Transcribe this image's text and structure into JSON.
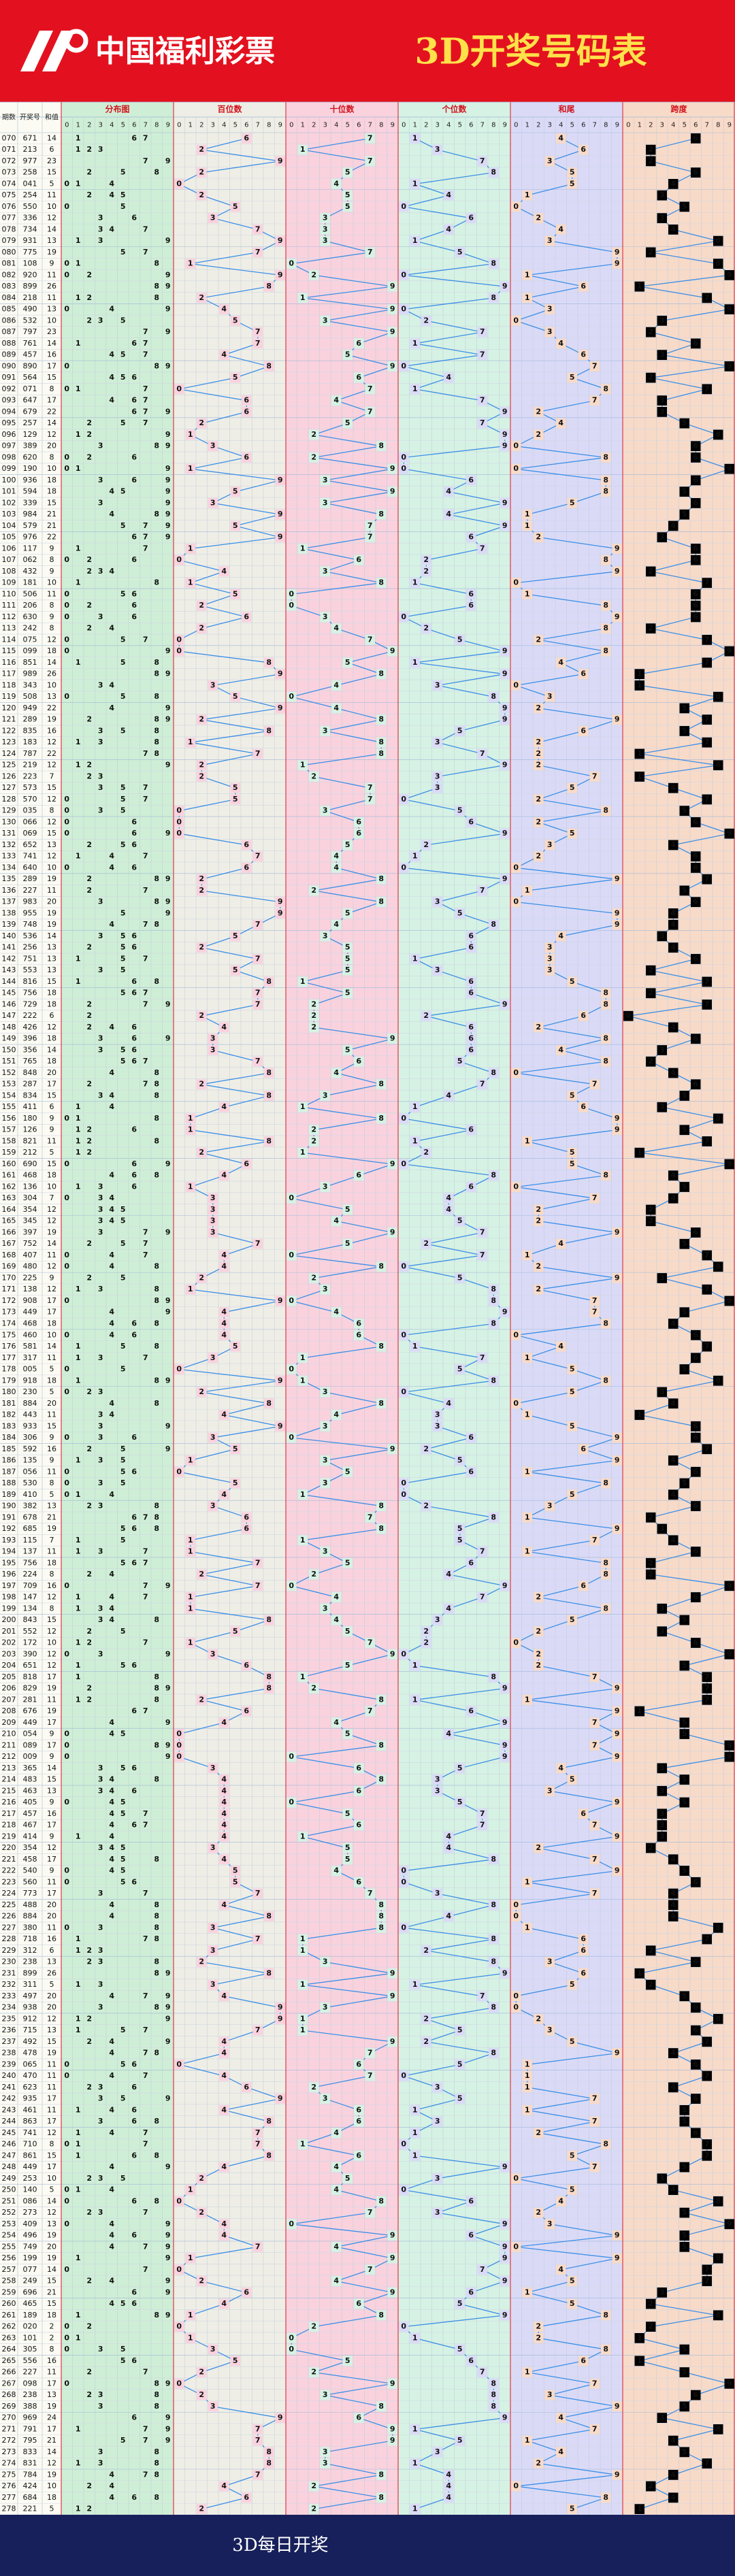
{
  "banner": {
    "logo": "中国福利彩票",
    "title": "3D开奖号码表"
  },
  "header": {
    "columns": [
      "期数",
      "开奖号",
      "和值"
    ],
    "sections": [
      "分布图",
      "百位数",
      "十位数",
      "个位数",
      "和尾",
      "跨度"
    ],
    "digits": [
      0,
      1,
      2,
      3,
      4,
      5,
      6,
      7,
      8,
      9
    ]
  },
  "table": {
    "issues": [
      "070",
      "071",
      "072",
      "073",
      "074",
      "075",
      "076",
      "077",
      "078",
      "079",
      "080",
      "081",
      "082",
      "083",
      "084",
      "085",
      "086",
      "087",
      "088",
      "089",
      "090",
      "091",
      "092",
      "093",
      "094",
      "095",
      "096",
      "097",
      "098",
      "099",
      "100",
      "101",
      "102",
      "103",
      "104",
      "105",
      "106",
      "107",
      "108",
      "109",
      "110",
      "111",
      "112",
      "113",
      "114",
      "115",
      "116",
      "117",
      "118",
      "119",
      "120",
      "121",
      "122",
      "123",
      "124",
      "125",
      "126",
      "127",
      "128",
      "129",
      "130",
      "131",
      "132",
      "133",
      "134",
      "135",
      "136",
      "137",
      "138",
      "139",
      "140",
      "141",
      "142",
      "143",
      "144",
      "145",
      "146",
      "147",
      "148",
      "149",
      "150",
      "151",
      "152",
      "153",
      "154",
      "155",
      "156",
      "157",
      "158",
      "159",
      "160",
      "161",
      "162",
      "163",
      "164",
      "165",
      "166",
      "167",
      "168",
      "169",
      "170",
      "171",
      "172",
      "173",
      "174",
      "175",
      "176",
      "177",
      "178",
      "179",
      "180",
      "181",
      "182",
      "183",
      "184",
      "185",
      "186",
      "187",
      "188",
      "189",
      "190",
      "191",
      "192",
      "193",
      "194",
      "195",
      "196",
      "197",
      "198",
      "199",
      "200",
      "201",
      "202",
      "203",
      "204",
      "205",
      "206",
      "207",
      "208",
      "209",
      "210",
      "211",
      "212",
      "213",
      "214",
      "215",
      "216",
      "217",
      "218",
      "219",
      "220",
      "221",
      "222",
      "223",
      "224",
      "225",
      "226",
      "227",
      "228",
      "229",
      "230",
      "231",
      "232",
      "233",
      "234",
      "235",
      "236",
      "237",
      "238",
      "239",
      "240",
      "241",
      "242",
      "243",
      "244",
      "245",
      "246",
      "247",
      "248",
      "249",
      "250",
      "251",
      "252",
      "253",
      "254",
      "255",
      "256",
      "257",
      "258",
      "259",
      "260",
      "261",
      "262",
      "263",
      "264",
      "265",
      "266",
      "267",
      "268",
      "269",
      "270",
      "271",
      "272",
      "273",
      "274",
      "275",
      "276",
      "277",
      "278"
    ],
    "numbers": [
      "671",
      "213",
      "977",
      "258",
      "041",
      "254",
      "550",
      "336",
      "734",
      "931",
      "775",
      "108",
      "920",
      "899",
      "218",
      "490",
      "532",
      "797",
      "761",
      "457",
      "890",
      "564",
      "071",
      "647",
      "679",
      "257",
      "129",
      "389",
      "620",
      "190",
      "936",
      "594",
      "339",
      "984",
      "579",
      "976",
      "117",
      "062",
      "432",
      "181",
      "506",
      "206",
      "630",
      "242",
      "075",
      "099",
      "851",
      "989",
      "343",
      "508",
      "949",
      "289",
      "835",
      "183",
      "787",
      "219",
      "223",
      "573",
      "570",
      "035",
      "066",
      "069",
      "652",
      "741",
      "640",
      "289",
      "227",
      "983",
      "955",
      "748",
      "536",
      "256",
      "751",
      "553",
      "816",
      "756",
      "729",
      "222",
      "426",
      "396",
      "356",
      "765",
      "848",
      "287",
      "834",
      "411",
      "180",
      "126",
      "821",
      "212",
      "690",
      "468",
      "136",
      "304",
      "354",
      "345",
      "397",
      "752",
      "407",
      "480",
      "225",
      "138",
      "908",
      "449",
      "468",
      "460",
      "581",
      "317",
      "005",
      "918",
      "230",
      "884",
      "443",
      "933",
      "306",
      "592",
      "135",
      "056",
      "530",
      "410",
      "382",
      "678",
      "685",
      "115",
      "137",
      "756",
      "224",
      "709",
      "147",
      "134",
      "843",
      "552",
      "172",
      "390",
      "651",
      "818",
      "829",
      "281",
      "676",
      "449",
      "054",
      "089",
      "009",
      "365",
      "483",
      "463",
      "405",
      "457",
      "467",
      "414",
      "354",
      "458",
      "540",
      "560",
      "773",
      "488",
      "884",
      "380",
      "718",
      "312",
      "238",
      "899",
      "311",
      "497",
      "938",
      "912",
      "715",
      "492",
      "478",
      "065",
      "470",
      "623",
      "935",
      "461",
      "863",
      "741",
      "710",
      "861",
      "449",
      "253",
      "140",
      "086",
      "273",
      "409",
      "496",
      "749",
      "199",
      "077",
      "249",
      "696",
      "465",
      "189",
      "020",
      "101",
      "305",
      "556",
      "227",
      "098",
      "238",
      "388",
      "969",
      "791",
      "795",
      "833",
      "831",
      "784",
      "424",
      "684",
      "221"
    ],
    "sums": [
      14,
      6,
      23,
      15,
      5,
      11,
      10,
      12,
      14,
      13,
      19,
      9,
      11,
      26,
      11,
      13,
      10,
      23,
      14,
      16,
      17,
      15,
      8,
      17,
      22,
      14,
      12,
      20,
      8,
      10,
      18,
      18,
      15,
      21,
      21,
      22,
      9,
      8,
      9,
      10,
      11,
      8,
      9,
      8,
      12,
      18,
      14,
      26,
      10,
      13,
      22,
      19,
      16,
      12,
      22,
      12,
      7,
      15,
      12,
      8,
      12,
      15,
      13,
      12,
      10,
      19,
      11,
      20,
      19,
      19,
      14,
      13,
      13,
      13,
      15,
      18,
      18,
      6,
      12,
      18,
      14,
      18,
      20,
      17,
      15,
      6,
      9,
      9,
      11,
      5,
      15,
      18,
      10,
      7,
      12,
      12,
      19,
      14,
      11,
      12,
      9,
      12,
      17,
      17,
      18,
      10,
      14,
      11,
      5,
      18,
      5,
      20,
      11,
      15,
      9,
      16,
      9,
      11,
      8,
      5,
      13,
      21,
      19,
      7,
      11,
      18,
      8,
      16,
      12,
      8,
      15,
      12,
      10,
      12,
      12,
      17,
      19,
      11,
      19,
      17,
      9,
      17,
      9,
      14,
      15,
      13,
      9,
      16,
      17,
      9,
      12,
      17,
      9,
      11,
      17,
      20,
      20,
      11,
      16,
      6,
      13,
      26,
      5,
      20,
      20,
      12,
      13,
      15,
      19,
      11,
      11,
      11,
      17,
      11,
      17,
      12,
      8,
      15,
      17,
      10,
      5,
      14,
      12,
      13,
      19,
      20,
      19,
      14,
      15,
      21,
      15,
      18,
      2,
      2,
      8,
      16,
      11,
      17,
      13,
      19,
      24,
      17,
      21,
      14,
      12,
      19,
      10,
      18,
      5
    ],
    "hundreds": [
      6,
      2,
      9,
      2,
      0,
      2,
      5,
      3,
      7,
      9,
      7,
      1,
      9,
      8,
      2,
      4,
      5,
      7,
      7,
      4,
      8,
      5,
      0,
      6,
      6,
      2,
      1,
      3,
      6,
      1,
      9,
      5,
      3,
      9,
      5,
      9,
      1,
      0,
      4,
      1,
      5,
      2,
      6,
      2,
      0,
      0,
      8,
      9,
      3,
      5,
      9,
      2,
      8,
      1,
      7,
      2,
      2,
      5,
      5,
      0,
      0,
      0,
      6,
      7,
      6,
      2,
      2,
      9,
      9,
      7,
      5,
      2,
      7,
      5,
      8,
      7,
      7,
      2,
      4,
      3,
      3,
      7,
      8,
      2,
      8,
      4,
      1,
      1,
      8,
      2,
      6,
      4,
      1,
      3,
      3,
      3,
      3,
      7,
      4,
      4,
      2,
      1,
      9,
      4,
      4,
      4,
      5,
      3,
      0,
      9,
      2,
      8,
      4,
      9,
      3,
      5,
      1,
      0,
      5,
      4,
      3,
      6,
      6,
      1,
      1,
      7,
      2,
      7,
      1,
      1,
      8,
      5,
      1,
      3,
      6,
      8,
      8,
      2,
      6,
      4,
      0,
      0,
      0,
      3,
      4,
      4,
      4,
      4,
      4,
      4,
      3,
      4,
      5,
      5,
      7,
      4,
      8,
      3,
      7,
      3,
      2,
      8,
      3,
      4,
      9,
      9,
      7,
      4,
      4,
      0,
      4,
      6,
      9,
      4,
      8,
      7,
      7,
      8,
      4,
      2,
      1,
      0,
      2,
      4,
      4,
      7,
      1,
      0,
      2,
      6,
      4,
      1,
      0,
      1,
      3,
      5,
      2,
      0,
      2,
      3,
      9,
      7,
      7,
      8,
      8,
      7,
      4,
      6,
      2
    ],
    "tens": [
      7,
      1,
      7,
      5,
      4,
      5,
      5,
      3,
      3,
      3,
      7,
      0,
      2,
      9,
      1,
      9,
      3,
      9,
      6,
      5,
      9,
      6,
      7,
      4,
      7,
      5,
      2,
      8,
      2,
      9,
      3,
      9,
      3,
      8,
      7,
      7,
      1,
      6,
      3,
      8,
      0,
      0,
      3,
      4,
      7,
      9,
      5,
      8,
      4,
      0,
      4,
      8,
      3,
      8,
      8,
      1,
      2,
      7,
      7,
      3,
      6,
      6,
      5,
      4,
      4,
      8,
      2,
      8,
      5,
      4,
      3,
      5,
      5,
      5,
      1,
      5,
      2,
      2,
      2,
      9,
      5,
      6,
      4,
      8,
      3,
      1,
      8,
      2,
      2,
      1,
      9,
      6,
      3,
      0,
      5,
      4,
      9,
      5,
      0,
      8,
      2,
      3,
      0,
      4,
      6,
      6,
      8,
      1,
      0,
      1,
      3,
      8,
      4,
      3,
      0,
      9,
      3,
      5,
      3,
      1,
      8,
      7,
      8,
      1,
      3,
      5,
      2,
      0,
      4,
      3,
      4,
      5,
      7,
      9,
      5,
      1,
      2,
      8,
      7,
      4,
      5,
      8,
      0,
      6,
      8,
      6,
      0,
      5,
      6,
      1,
      5,
      5,
      4,
      6,
      7,
      8,
      8,
      8,
      1,
      1,
      3,
      9,
      1,
      9,
      3,
      1,
      1,
      9,
      7,
      6,
      7,
      2,
      3,
      6,
      6,
      4,
      1,
      6,
      4,
      5,
      4,
      8,
      7,
      0,
      9,
      4,
      9,
      7,
      4,
      9,
      6,
      8,
      2,
      0,
      0,
      5,
      2,
      9,
      3,
      8,
      6,
      9,
      9,
      3,
      3,
      8,
      2,
      8,
      2
    ],
    "units": [
      1,
      3,
      7,
      8,
      1,
      4,
      0,
      6,
      4,
      1,
      5,
      8,
      0,
      9,
      8,
      0,
      2,
      7,
      1,
      7,
      0,
      4,
      1,
      7,
      9,
      7,
      9,
      9,
      0,
      0,
      6,
      4,
      9,
      4,
      9,
      6,
      7,
      2,
      2,
      1,
      6,
      6,
      0,
      2,
      5,
      9,
      1,
      9,
      3,
      8,
      9,
      9,
      5,
      3,
      7,
      9,
      3,
      3,
      0,
      5,
      6,
      9,
      2,
      1,
      0,
      9,
      7,
      3,
      5,
      8,
      6,
      6,
      1,
      3,
      6,
      6,
      9,
      2,
      6,
      6,
      6,
      5,
      8,
      7,
      4,
      1,
      0,
      6,
      1,
      2,
      0,
      8,
      6,
      4,
      4,
      5,
      7,
      2,
      7,
      0,
      5,
      8,
      8,
      9,
      8,
      0,
      1,
      7,
      5,
      8,
      0,
      4,
      3,
      3,
      6,
      2,
      5,
      6,
      0,
      0,
      2,
      8,
      5,
      5,
      7,
      6,
      4,
      9,
      7,
      4,
      3,
      2,
      2,
      0,
      1,
      8,
      9,
      1,
      6,
      9,
      4,
      9,
      9,
      5,
      3,
      3,
      5,
      7,
      7,
      4,
      4,
      8,
      0,
      0,
      3,
      8,
      4,
      0,
      8,
      2,
      8,
      9,
      1,
      7,
      8,
      2,
      5,
      2,
      8,
      5,
      0,
      3,
      5,
      1,
      3,
      1,
      0,
      1,
      9,
      3,
      0,
      6,
      3,
      9,
      6,
      9,
      9,
      7,
      9,
      6,
      5,
      9,
      0,
      1,
      5,
      6,
      7,
      8,
      8,
      8,
      9,
      1,
      5,
      3,
      1,
      4,
      4,
      4,
      1
    ],
    "tails": [
      4,
      6,
      3,
      5,
      5,
      1,
      0,
      2,
      4,
      3,
      9,
      9,
      1,
      6,
      1,
      3,
      0,
      3,
      4,
      6,
      7,
      5,
      8,
      7,
      2,
      4,
      2,
      0,
      8,
      0,
      8,
      8,
      5,
      1,
      1,
      2,
      9,
      8,
      9,
      0,
      1,
      8,
      9,
      8,
      2,
      8,
      4,
      6,
      0,
      3,
      2,
      9,
      6,
      2,
      2,
      2,
      7,
      5,
      2,
      8,
      2,
      5,
      3,
      2,
      0,
      9,
      1,
      0,
      9,
      9,
      4,
      3,
      3,
      3,
      5,
      8,
      8,
      6,
      2,
      8,
      4,
      8,
      0,
      7,
      5,
      6,
      9,
      9,
      1,
      5,
      5,
      8,
      0,
      7,
      2,
      2,
      9,
      4,
      1,
      2,
      9,
      2,
      7,
      7,
      8,
      0,
      4,
      1,
      5,
      8,
      5,
      0,
      1,
      5,
      9,
      6,
      9,
      1,
      8,
      5,
      3,
      1,
      9,
      7,
      1,
      8,
      8,
      6,
      2,
      8,
      5,
      2,
      0,
      2,
      2,
      7,
      9,
      1,
      9,
      7,
      9,
      7,
      9,
      4,
      5,
      3,
      9,
      6,
      7,
      9,
      2,
      7,
      9,
      1,
      7,
      0,
      0,
      1,
      6,
      6,
      3,
      6,
      5,
      0,
      0,
      2,
      3,
      5,
      9,
      1,
      1,
      1,
      7,
      1,
      7,
      2,
      8,
      5,
      7,
      0,
      5,
      4,
      2,
      3,
      9,
      0,
      9,
      4,
      5,
      1,
      5,
      8,
      2,
      2,
      8,
      6,
      1,
      7,
      3,
      9,
      4,
      7,
      1,
      4,
      2,
      9,
      0,
      8,
      5
    ],
    "spans": [
      6,
      2,
      2,
      6,
      4,
      3,
      5,
      3,
      4,
      8,
      2,
      8,
      9,
      1,
      7,
      9,
      3,
      2,
      6,
      3,
      9,
      2,
      7,
      3,
      3,
      5,
      8,
      6,
      6,
      9,
      6,
      5,
      6,
      5,
      4,
      3,
      6,
      6,
      2,
      7,
      6,
      6,
      6,
      2,
      7,
      9,
      7,
      1,
      1,
      8,
      5,
      7,
      5,
      7,
      1,
      8,
      1,
      4,
      7,
      5,
      6,
      9,
      4,
      6,
      6,
      7,
      5,
      6,
      4,
      4,
      3,
      4,
      6,
      2,
      7,
      2,
      7,
      0,
      4,
      6,
      3,
      2,
      4,
      6,
      5,
      3,
      8,
      5,
      7,
      1,
      9,
      4,
      5,
      4,
      2,
      2,
      6,
      5,
      7,
      8,
      3,
      7,
      9,
      5,
      4,
      6,
      7,
      6,
      5,
      8,
      3,
      4,
      1,
      6,
      6,
      7,
      4,
      6,
      5,
      4,
      6,
      2,
      3,
      4,
      6,
      2,
      2,
      9,
      6,
      3,
      5,
      3,
      6,
      9,
      5,
      7,
      7,
      7,
      1,
      5,
      5,
      9,
      9,
      3,
      5,
      3,
      5,
      3,
      3,
      3,
      2,
      4,
      5,
      6,
      4,
      4,
      4,
      8,
      7,
      2,
      6,
      1,
      2,
      5,
      6,
      8,
      6,
      7,
      4,
      6,
      7,
      4,
      6,
      5,
      5,
      6,
      7,
      7,
      5,
      3,
      4,
      8,
      5,
      9,
      5,
      5,
      8,
      7,
      7,
      3,
      2,
      8,
      2,
      1,
      5,
      1,
      5,
      9,
      6,
      5,
      3,
      8,
      4,
      5,
      7,
      4,
      2,
      4,
      1
    ]
  },
  "footer": {
    "text": "3D每日开奖"
  }
}
